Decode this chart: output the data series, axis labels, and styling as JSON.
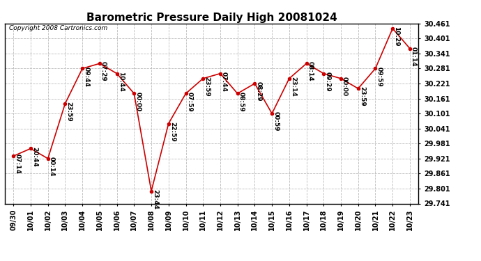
{
  "title": "Barometric Pressure Daily High 20081024",
  "copyright": "Copyright 2008 Cartronics.com",
  "x_labels": [
    "09/30",
    "10/01",
    "10/02",
    "10/03",
    "10/04",
    "10/05",
    "10/06",
    "10/07",
    "10/08",
    "10/09",
    "10/10",
    "10/11",
    "10/12",
    "10/13",
    "10/14",
    "10/15",
    "10/16",
    "10/17",
    "10/18",
    "10/19",
    "10/20",
    "10/21",
    "10/22",
    "10/23"
  ],
  "y_values": [
    29.931,
    29.961,
    29.921,
    30.141,
    30.281,
    30.301,
    30.261,
    30.181,
    29.791,
    30.061,
    30.181,
    30.241,
    30.261,
    30.181,
    30.221,
    30.101,
    30.241,
    30.301,
    30.261,
    30.241,
    30.201,
    30.281,
    30.441,
    30.361
  ],
  "point_labels": [
    "07:14",
    "20:44",
    "00:14",
    "23:59",
    "09:44",
    "07:29",
    "10:44",
    "00:00",
    "23:44",
    "22:59",
    "07:59",
    "23:59",
    "07:44",
    "08:59",
    "08:29",
    "00:59",
    "23:14",
    "08:14",
    "09:29",
    "00:00",
    "23:59",
    "09:59",
    "10:29",
    "01:14"
  ],
  "ylim_min": 29.741,
  "ylim_max": 30.461,
  "ytick_step": 0.06,
  "line_color": "#cc0000",
  "marker_color": "#cc0000",
  "background_color": "#ffffff",
  "grid_color": "#bbbbbb",
  "title_fontsize": 11,
  "axis_fontsize": 7,
  "label_fontsize": 6.5,
  "copyright_fontsize": 6.5
}
